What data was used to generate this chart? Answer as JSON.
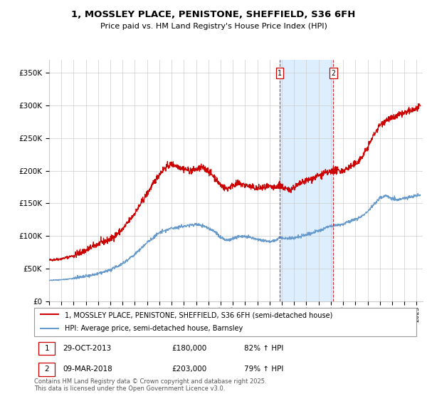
{
  "title": "1, MOSSLEY PLACE, PENISTONE, SHEFFIELD, S36 6FH",
  "subtitle": "Price paid vs. HM Land Registry's House Price Index (HPI)",
  "ylabel_ticks": [
    "£0",
    "£50K",
    "£100K",
    "£150K",
    "£200K",
    "£250K",
    "£300K",
    "£350K"
  ],
  "ytick_values": [
    0,
    50000,
    100000,
    150000,
    200000,
    250000,
    300000,
    350000
  ],
  "ylim": [
    0,
    370000
  ],
  "xlim_start": 1995.0,
  "xlim_end": 2025.5,
  "transaction1": {
    "date_num": 2013.83,
    "price": 180000,
    "label": "1",
    "date_str": "29-OCT-2013",
    "hpi_pct": "82% ↑ HPI"
  },
  "transaction2": {
    "date_num": 2018.19,
    "price": 203000,
    "label": "2",
    "date_str": "09-MAR-2018",
    "hpi_pct": "79% ↑ HPI"
  },
  "legend_line1": "1, MOSSLEY PLACE, PENISTONE, SHEFFIELD, S36 6FH (semi-detached house)",
  "legend_line2": "HPI: Average price, semi-detached house, Barnsley",
  "table_row1": [
    "1",
    "29-OCT-2013",
    "£180,000",
    "82% ↑ HPI"
  ],
  "table_row2": [
    "2",
    "09-MAR-2018",
    "£203,000",
    "79% ↑ HPI"
  ],
  "footer": "Contains HM Land Registry data © Crown copyright and database right 2025.\nThis data is licensed under the Open Government Licence v3.0.",
  "red_color": "#cc0000",
  "blue_color": "#6699cc",
  "shading_color": "#ddeeff",
  "grid_color": "#cccccc",
  "border_color": "#999999"
}
